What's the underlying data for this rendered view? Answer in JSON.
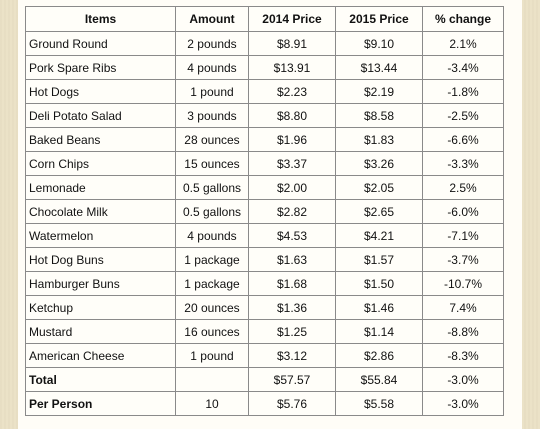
{
  "table": {
    "headers": [
      "Items",
      "Amount",
      "2014 Price",
      "2015 Price",
      "% change"
    ],
    "rows": [
      [
        "Ground Round",
        "2 pounds",
        "$8.91",
        "$9.10",
        "2.1%"
      ],
      [
        "Pork Spare Ribs",
        "4 pounds",
        "$13.91",
        "$13.44",
        "-3.4%"
      ],
      [
        "Hot Dogs",
        "1 pound",
        "$2.23",
        "$2.19",
        "-1.8%"
      ],
      [
        "Deli Potato Salad",
        "3 pounds",
        "$8.80",
        "$8.58",
        "-2.5%"
      ],
      [
        "Baked Beans",
        "28 ounces",
        "$1.96",
        "$1.83",
        "-6.6%"
      ],
      [
        "Corn Chips",
        "15 ounces",
        "$3.37",
        "$3.26",
        "-3.3%"
      ],
      [
        "Lemonade",
        "0.5 gallons",
        "$2.00",
        "$2.05",
        "2.5%"
      ],
      [
        "Chocolate Milk",
        "0.5 gallons",
        "$2.82",
        "$2.65",
        "-6.0%"
      ],
      [
        "Watermelon",
        "4 pounds",
        "$4.53",
        "$4.21",
        "-7.1%"
      ],
      [
        "Hot Dog Buns",
        "1 package",
        "$1.63",
        "$1.57",
        "-3.7%"
      ],
      [
        "Hamburger Buns",
        "1 package",
        "$1.68",
        "$1.50",
        "-10.7%"
      ],
      [
        "Ketchup",
        "20 ounces",
        "$1.36",
        "$1.46",
        "7.4%"
      ],
      [
        "Mustard",
        "16 ounces",
        "$1.25",
        "$1.14",
        "-8.8%"
      ],
      [
        "American Cheese",
        "1 pound",
        "$3.12",
        "$2.86",
        "-8.3%"
      ]
    ],
    "total_row": [
      "Total",
      "",
      "$57.57",
      "$55.84",
      "-3.0%"
    ],
    "per_person_row": [
      "Per Person",
      "10",
      "$5.76",
      "$5.58",
      "-3.0%"
    ]
  }
}
